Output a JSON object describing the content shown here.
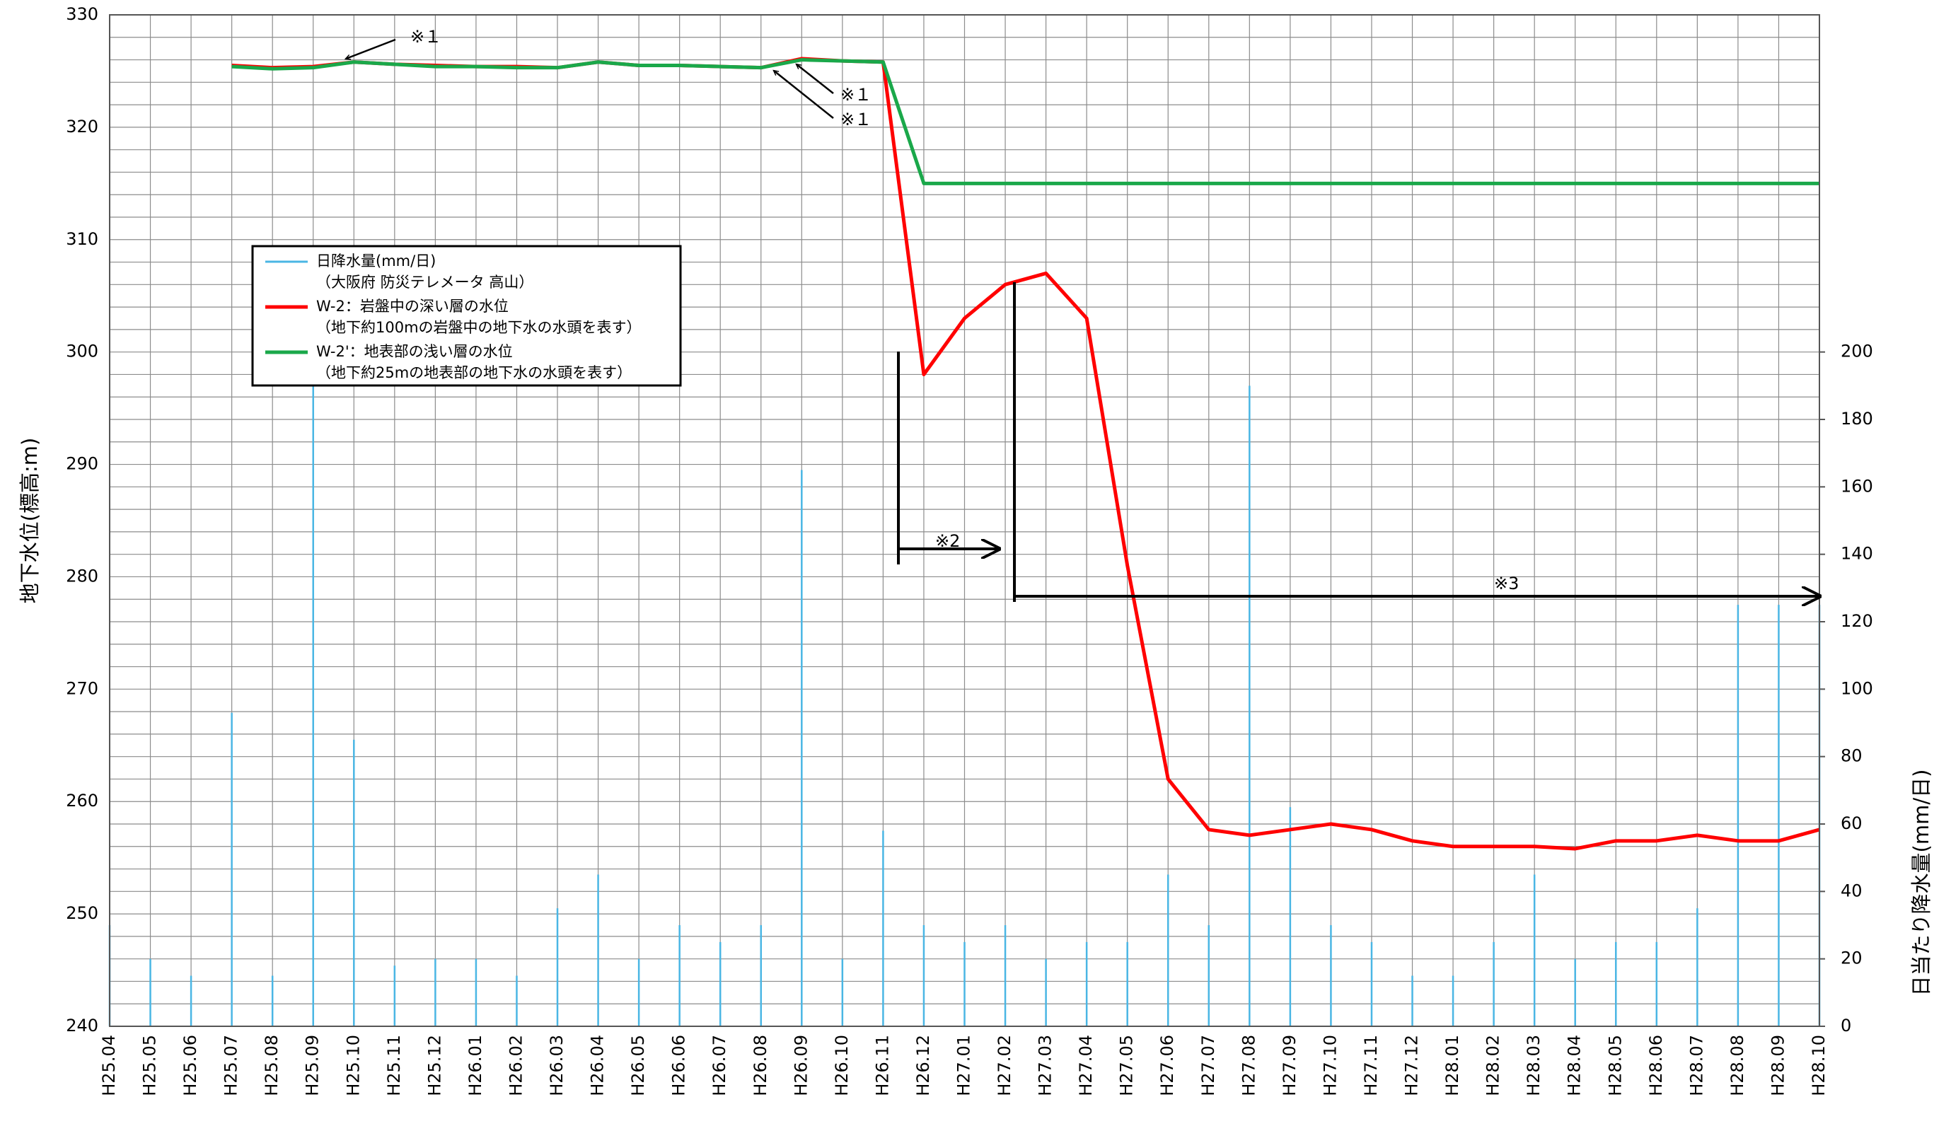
{
  "chart_data": {
    "type": "line",
    "categories": [
      "H25.04",
      "H25.05",
      "H25.06",
      "H25.07",
      "H25.08",
      "H25.09",
      "H25.10",
      "H25.11",
      "H25.12",
      "H26.01",
      "H26.02",
      "H26.03",
      "H26.04",
      "H26.05",
      "H26.06",
      "H26.07",
      "H26.08",
      "H26.09",
      "H26.10",
      "H26.11",
      "H26.12",
      "H27.01",
      "H27.02",
      "H27.03",
      "H27.04",
      "H27.05",
      "H27.06",
      "H27.07",
      "H27.08",
      "H27.09",
      "H27.10",
      "H27.11",
      "H27.12",
      "H28.01",
      "H28.02",
      "H28.03",
      "H28.04",
      "H28.05",
      "H28.06",
      "H28.07",
      "H28.08",
      "H28.09",
      "H28.10"
    ],
    "y_label": "地下水位(標高:m)",
    "y2_label": "日当たり降水量(mm/日)",
    "ylim": [
      240,
      330
    ],
    "yticks": [
      240,
      250,
      260,
      270,
      280,
      290,
      300,
      310,
      320,
      330
    ],
    "y2lim": [
      0,
      300
    ],
    "y2ticks": [
      0,
      20,
      40,
      60,
      80,
      100,
      120,
      140,
      160,
      180,
      200
    ],
    "grid": true,
    "series": [
      {
        "name": "日降水量(mm/日)",
        "legend_note": "（大阪府 防災テレメータ 高山）",
        "type": "bar",
        "axis": "y2",
        "color": "#4ab6e4",
        "values": [
          30,
          20,
          15,
          93,
          15,
          190,
          85,
          18,
          20,
          20,
          15,
          35,
          45,
          20,
          30,
          25,
          30,
          165,
          20,
          58,
          30,
          25,
          30,
          20,
          25,
          25,
          45,
          30,
          190,
          65,
          30,
          25,
          15,
          15,
          25,
          45,
          20,
          25,
          25,
          35,
          125,
          125,
          125
        ]
      },
      {
        "name": "W-2：岩盤中の深い層の水位",
        "legend_note": "（地下約100mの岩盤中の地下水の水頭を表す）",
        "color": "#ff0000",
        "values": [
          null,
          null,
          null,
          325.5,
          325.3,
          325.4,
          325.8,
          325.6,
          325.5,
          325.4,
          325.4,
          325.3,
          325.8,
          325.5,
          325.5,
          325.4,
          325.3,
          326.1,
          325.9,
          325.8,
          298,
          303,
          306,
          307,
          303,
          281,
          262,
          257.5,
          257,
          257.5,
          258,
          257.5,
          256.5,
          256,
          256,
          256,
          255.8,
          256.5,
          256.5,
          257,
          256.5,
          256.5,
          257.5
        ]
      },
      {
        "name": "W-2'：地表部の浅い層の水位",
        "legend_note": "（地下約25mの地表部の地下水の水頭を表す）",
        "color": "#1aa84a",
        "values": [
          null,
          null,
          null,
          325.4,
          325.2,
          325.3,
          325.8,
          325.6,
          325.4,
          325.4,
          325.3,
          325.3,
          325.8,
          325.5,
          325.5,
          325.4,
          325.3,
          326,
          325.9,
          325.8,
          315,
          315,
          315,
          315,
          315,
          315,
          315,
          315,
          315,
          315,
          315,
          315,
          315,
          315,
          315,
          315,
          315,
          315,
          315,
          315,
          315,
          315,
          315
        ]
      }
    ],
    "annotations": [
      "※１",
      "※１",
      "※１",
      "※2",
      "※3"
    ]
  }
}
